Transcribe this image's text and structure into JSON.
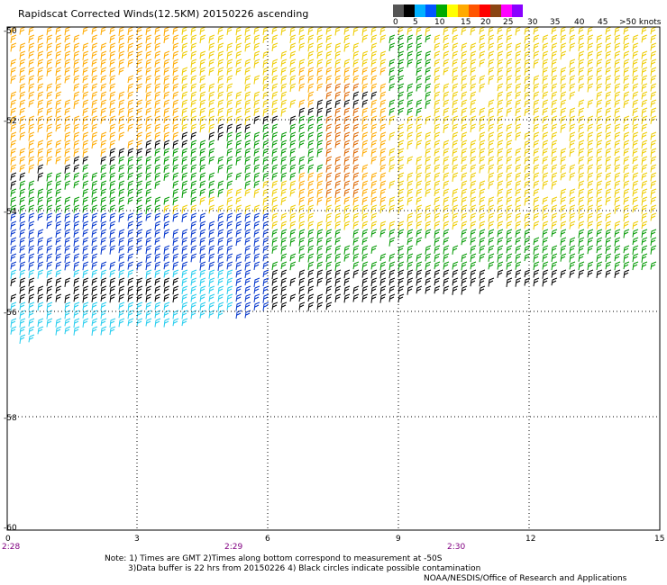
{
  "header": {
    "title": "Rapidscat Corrected Winds(12.5KM) 20150226 ascending"
  },
  "legend": {
    "labels": [
      "0",
      "5",
      "10",
      "15",
      "20",
      "25",
      "30",
      "35",
      "40",
      "45",
      ">50 knots"
    ],
    "colors": [
      "#555555",
      "#000000",
      "#00b0ff",
      "#0055ff",
      "#00aa00",
      "#ffff00",
      "#ffaa00",
      "#ff5500",
      "#ff0000",
      "#8b4513",
      "#ff00ff",
      "#8800ff"
    ]
  },
  "map": {
    "x_axis": {
      "ticks": [
        "0",
        "3",
        "6",
        "9",
        "12",
        "15"
      ]
    },
    "y_axis": {
      "ticks": [
        "-50",
        "-52",
        "-54",
        "-56",
        "-58",
        "-60"
      ]
    },
    "times": [
      "2:28",
      "2:29",
      "2:30"
    ],
    "grid": true,
    "colors": {
      "frame": "#000000",
      "grid_dots": "#000000",
      "time_text": "#800080"
    }
  },
  "footer": {
    "note_line1": "Note: 1) Times are GMT 2)Times along bottom correspond to measurement at -50S",
    "note_line2": "3)Data buffer is 22 hrs from 20150226 4) Black circles indicate possible contamination",
    "credit": "NOAA/NESDIS/Office of Research and Applications"
  }
}
